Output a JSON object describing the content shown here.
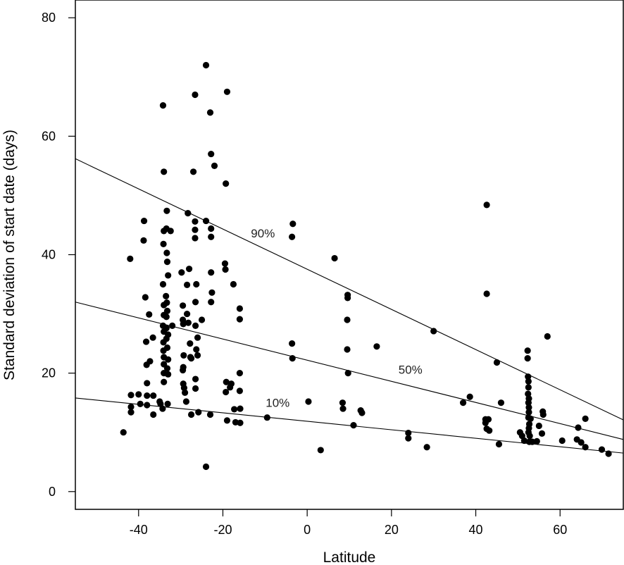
{
  "chart_data": {
    "type": "scatter",
    "title": "",
    "xlabel": "Latitude",
    "ylabel": "Standard deviation of start date (days)",
    "xlim": [
      -55,
      75
    ],
    "ylim": [
      -3,
      83
    ],
    "x_ticks": [
      -40,
      -20,
      0,
      20,
      40,
      60
    ],
    "y_ticks": [
      0,
      20,
      40,
      60,
      80
    ],
    "x_tick_labels": [
      "-40",
      "-20",
      "0",
      "20",
      "40",
      "60"
    ],
    "y_tick_labels": [
      "0",
      "20",
      "40",
      "60",
      "80"
    ],
    "grid": false,
    "legend": "none",
    "point_color": "#000000",
    "line_color": "#000000",
    "quantile_lines": [
      {
        "label": "90%",
        "x": [
          -55,
          75
        ],
        "y": [
          56.2,
          12.1
        ],
        "label_at": [
          -10.5,
          43.6
        ]
      },
      {
        "label": "50%",
        "x": [
          -55,
          75
        ],
        "y": [
          32.0,
          8.8
        ],
        "label_at": [
          24.5,
          20.6
        ]
      },
      {
        "label": "10%",
        "x": [
          -55,
          75
        ],
        "y": [
          15.8,
          6.5
        ],
        "label_at": [
          -7.0,
          15.0
        ]
      }
    ],
    "points": [
      [
        -43.6,
        10.0
      ],
      [
        -42.0,
        39.3
      ],
      [
        -41.8,
        16.3
      ],
      [
        -41.8,
        14.3
      ],
      [
        -41.8,
        13.4
      ],
      [
        -40.0,
        16.4
      ],
      [
        -39.6,
        14.8
      ],
      [
        -38.7,
        45.7
      ],
      [
        -38.8,
        42.4
      ],
      [
        -38.4,
        32.8
      ],
      [
        -38.2,
        25.3
      ],
      [
        -38.1,
        21.4
      ],
      [
        -38.0,
        18.3
      ],
      [
        -38.0,
        16.2
      ],
      [
        -38.0,
        14.6
      ],
      [
        -37.5,
        29.9
      ],
      [
        -37.3,
        22.0
      ],
      [
        -36.6,
        26.0
      ],
      [
        -36.5,
        16.2
      ],
      [
        -36.5,
        13.0
      ],
      [
        -35.0,
        15.2
      ],
      [
        -34.8,
        14.8
      ],
      [
        -34.2,
        65.2
      ],
      [
        -34.0,
        54.0
      ],
      [
        -34.0,
        44.0
      ],
      [
        -34.1,
        41.8
      ],
      [
        -34.2,
        35.0
      ],
      [
        -34.0,
        31.5
      ],
      [
        -34.0,
        29.8
      ],
      [
        -34.2,
        28.0
      ],
      [
        -34.0,
        27.0
      ],
      [
        -34.1,
        25.2
      ],
      [
        -34.1,
        23.8
      ],
      [
        -34.0,
        22.7
      ],
      [
        -34.0,
        21.5
      ],
      [
        -34.0,
        20.0
      ],
      [
        -34.0,
        18.5
      ],
      [
        -34.3,
        14.0
      ],
      [
        -33.3,
        47.4
      ],
      [
        -33.4,
        44.4
      ],
      [
        -33.3,
        40.3
      ],
      [
        -33.2,
        38.8
      ],
      [
        -33.0,
        36.5
      ],
      [
        -33.5,
        33.0
      ],
      [
        -33.3,
        31.9
      ],
      [
        -33.2,
        30.5
      ],
      [
        -33.4,
        29.5
      ],
      [
        -33.4,
        27.6
      ],
      [
        -33.0,
        26.5
      ],
      [
        -33.4,
        25.8
      ],
      [
        -33.2,
        24.3
      ],
      [
        -33.0,
        22.3
      ],
      [
        -33.2,
        20.8
      ],
      [
        -33.0,
        19.8
      ],
      [
        -33.1,
        14.8
      ],
      [
        -32.4,
        44.0
      ],
      [
        -32.0,
        28.0
      ],
      [
        -29.8,
        37.0
      ],
      [
        -29.5,
        31.4
      ],
      [
        -29.5,
        29.0
      ],
      [
        -29.4,
        28.3
      ],
      [
        -29.3,
        23.0
      ],
      [
        -29.4,
        21.0
      ],
      [
        -29.5,
        20.5
      ],
      [
        -29.4,
        18.2
      ],
      [
        -29.2,
        17.5
      ],
      [
        -29.0,
        16.7
      ],
      [
        -28.7,
        15.2
      ],
      [
        -28.3,
        47.0
      ],
      [
        -28.0,
        37.6
      ],
      [
        -28.5,
        34.9
      ],
      [
        -28.5,
        30.0
      ],
      [
        -28.2,
        28.5
      ],
      [
        -27.8,
        25.0
      ],
      [
        -27.7,
        22.7
      ],
      [
        -27.5,
        22.5
      ],
      [
        -27.5,
        13.0
      ],
      [
        -27.0,
        54.0
      ],
      [
        -26.6,
        67.0
      ],
      [
        -26.6,
        45.6
      ],
      [
        -26.6,
        44.2
      ],
      [
        -26.6,
        42.8
      ],
      [
        -26.3,
        35.0
      ],
      [
        -26.5,
        32.0
      ],
      [
        -26.5,
        28.0
      ],
      [
        -26.0,
        26.0
      ],
      [
        -26.3,
        24.0
      ],
      [
        -26.0,
        23.0
      ],
      [
        -26.5,
        19.0
      ],
      [
        -26.5,
        17.4
      ],
      [
        -25.8,
        13.4
      ],
      [
        -25.0,
        29.0
      ],
      [
        -24.0,
        72.0
      ],
      [
        -24.0,
        45.7
      ],
      [
        -24.0,
        4.2
      ],
      [
        -23.0,
        64.0
      ],
      [
        -22.8,
        57.0
      ],
      [
        -22.8,
        44.4
      ],
      [
        -22.8,
        43.0
      ],
      [
        -22.8,
        37.0
      ],
      [
        -22.6,
        33.6
      ],
      [
        -22.8,
        32.0
      ],
      [
        -23.0,
        13.0
      ],
      [
        -22.0,
        55.0
      ],
      [
        -19.0,
        67.5
      ],
      [
        -19.3,
        52.0
      ],
      [
        -19.5,
        38.5
      ],
      [
        -19.4,
        37.5
      ],
      [
        -19.2,
        18.5
      ],
      [
        -19.3,
        16.8
      ],
      [
        -19.0,
        12.0
      ],
      [
        -18.3,
        17.6
      ],
      [
        -18.0,
        18.2
      ],
      [
        -17.5,
        35.0
      ],
      [
        -17.3,
        13.9
      ],
      [
        -17.0,
        11.7
      ],
      [
        -16.0,
        30.9
      ],
      [
        -16.0,
        29.1
      ],
      [
        -16.0,
        20.0
      ],
      [
        -16.0,
        17.0
      ],
      [
        -15.9,
        14.0
      ],
      [
        -15.9,
        11.6
      ],
      [
        -9.5,
        12.5
      ],
      [
        -3.4,
        45.2
      ],
      [
        -3.6,
        43.0
      ],
      [
        -3.6,
        25.0
      ],
      [
        -3.5,
        22.5
      ],
      [
        0.3,
        15.2
      ],
      [
        3.2,
        7.0
      ],
      [
        6.5,
        39.4
      ],
      [
        8.4,
        15.0
      ],
      [
        8.5,
        14.0
      ],
      [
        9.6,
        33.2
      ],
      [
        9.6,
        32.7
      ],
      [
        9.5,
        29.0
      ],
      [
        9.5,
        24.0
      ],
      [
        9.7,
        20.0
      ],
      [
        11.0,
        11.2
      ],
      [
        12.7,
        13.7
      ],
      [
        13.0,
        13.3
      ],
      [
        16.5,
        24.5
      ],
      [
        24.0,
        9.9
      ],
      [
        24.0,
        9.0
      ],
      [
        28.4,
        7.5
      ],
      [
        30.0,
        27.1
      ],
      [
        37.0,
        15.0
      ],
      [
        38.6,
        16.0
      ],
      [
        42.6,
        48.4
      ],
      [
        42.6,
        33.4
      ],
      [
        42.3,
        12.2
      ],
      [
        42.3,
        11.6
      ],
      [
        42.6,
        10.6
      ],
      [
        43.0,
        12.2
      ],
      [
        43.2,
        10.3
      ],
      [
        45.0,
        21.8
      ],
      [
        45.5,
        8.0
      ],
      [
        46.0,
        15.0
      ],
      [
        50.5,
        10.0
      ],
      [
        51.0,
        9.4
      ],
      [
        51.5,
        8.6
      ],
      [
        52.3,
        23.8
      ],
      [
        52.3,
        22.5
      ],
      [
        52.4,
        19.4
      ],
      [
        52.5,
        18.6
      ],
      [
        52.5,
        17.6
      ],
      [
        52.4,
        16.5
      ],
      [
        52.6,
        15.7
      ],
      [
        52.5,
        15.0
      ],
      [
        52.6,
        14.2
      ],
      [
        52.6,
        13.4
      ],
      [
        52.5,
        12.5
      ],
      [
        52.7,
        11.4
      ],
      [
        52.6,
        10.7
      ],
      [
        52.5,
        10.0
      ],
      [
        52.8,
        9.4
      ],
      [
        52.7,
        8.4
      ],
      [
        53.0,
        12.3
      ],
      [
        53.4,
        8.4
      ],
      [
        54.5,
        8.5
      ],
      [
        55.0,
        11.1
      ],
      [
        55.7,
        9.8
      ],
      [
        55.9,
        13.5
      ],
      [
        56.0,
        13.0
      ],
      [
        57.0,
        26.2
      ],
      [
        60.5,
        8.6
      ],
      [
        64.0,
        8.8
      ],
      [
        64.3,
        10.8
      ],
      [
        65.0,
        8.3
      ],
      [
        66.0,
        12.3
      ],
      [
        66.0,
        7.5
      ],
      [
        69.9,
        7.1
      ],
      [
        71.5,
        6.4
      ]
    ]
  }
}
